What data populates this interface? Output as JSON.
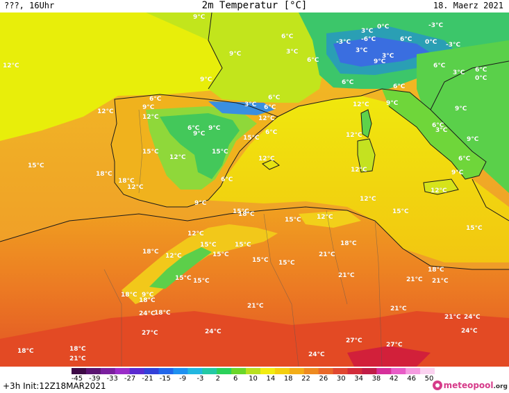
{
  "header": {
    "left": "???, 16Uhr",
    "title": "2m Temperatur [°C]",
    "date": "18. Maerz 2021"
  },
  "footer": {
    "init": "+3h Init:12Z18MAR2021",
    "logo": "meteopool",
    "logo_domain": ".org"
  },
  "colorbar": {
    "ticks": [
      "-45",
      "-39",
      "-33",
      "-27",
      "-21",
      "-15",
      "-9",
      "-3",
      "2",
      "6",
      "10",
      "14",
      "18",
      "22",
      "26",
      "30",
      "34",
      "38",
      "42",
      "46",
      "50"
    ],
    "colors": [
      "#3d0a45",
      "#5a1470",
      "#7a1f9e",
      "#9a2cc8",
      "#5a2bd0",
      "#3240d8",
      "#2266ea",
      "#1e90f0",
      "#22b7e0",
      "#23c9a4",
      "#2bd15a",
      "#6ad62a",
      "#b9e020",
      "#f2ec11",
      "#f4cf0e",
      "#f3ad17",
      "#ee8a20",
      "#e9682a",
      "#e04730",
      "#d22b3a",
      "#c01c46",
      "#d62f9a",
      "#e85cc6",
      "#f59be0",
      "#fbd2f0"
    ]
  },
  "map": {
    "colors": {
      "sea_west": "#f1a62f",
      "land_africa": "#ec7d22",
      "sahara_hot": "#e25a22",
      "mediterranean": "#f2d60c",
      "bay_biscay": "#e9ef0a",
      "iberia_warm": "#f1bf16",
      "mountains_green": "#4fd247",
      "alps_cold": "#2ba36c",
      "alps_blue": "#3a6fe0",
      "coast": "#1a1a1a"
    },
    "labels": [
      {
        "t": "9°C"
      },
      {
        "t": "6°C"
      },
      {
        "t": "9°C"
      },
      {
        "t": "9°C"
      },
      {
        "t": "12°C"
      },
      {
        "t": "3°C"
      },
      {
        "t": "6°C"
      },
      {
        "t": "-3°C"
      },
      {
        "t": "3°C"
      },
      {
        "t": "0°C"
      },
      {
        "t": "-3°C"
      },
      {
        "t": "-6°C"
      },
      {
        "t": "6°C"
      },
      {
        "t": "0°C"
      },
      {
        "t": "-3°C"
      },
      {
        "t": "6°C"
      },
      {
        "t": "3°C"
      },
      {
        "t": "3°C"
      },
      {
        "t": "9°C"
      },
      {
        "t": "6°C"
      },
      {
        "t": "6°C"
      },
      {
        "t": "3°C"
      },
      {
        "t": "6°C"
      },
      {
        "t": "0°C"
      },
      {
        "t": "6°C"
      },
      {
        "t": "6°C"
      },
      {
        "t": "12°C"
      },
      {
        "t": "9°C"
      },
      {
        "t": "3°C"
      },
      {
        "t": "6°C"
      },
      {
        "t": "6°C"
      },
      {
        "t": "9°C"
      },
      {
        "t": "12°C"
      },
      {
        "t": "9°C"
      },
      {
        "t": "12°C"
      },
      {
        "t": "12°C"
      },
      {
        "t": "6°C"
      },
      {
        "t": "9°C"
      },
      {
        "t": "15°C"
      },
      {
        "t": "9°C"
      },
      {
        "t": "6°C"
      },
      {
        "t": "12°C"
      },
      {
        "t": "3°C"
      },
      {
        "t": "9°C"
      },
      {
        "t": "12°C"
      },
      {
        "t": "15°C"
      },
      {
        "t": "6°C"
      },
      {
        "t": "12°C"
      },
      {
        "t": "15°C"
      },
      {
        "t": "12°C"
      },
      {
        "t": "9°C"
      },
      {
        "t": "12°C"
      },
      {
        "t": "15°C"
      },
      {
        "t": "6°C"
      },
      {
        "t": "15°C"
      },
      {
        "t": "18°C"
      },
      {
        "t": "18°C"
      },
      {
        "t": "12°C"
      },
      {
        "t": "9°C"
      },
      {
        "t": "12°C"
      },
      {
        "t": "12°C"
      },
      {
        "t": "15°C"
      },
      {
        "t": "15°C"
      },
      {
        "t": "12°C"
      },
      {
        "t": "15°C"
      },
      {
        "t": "18°C"
      },
      {
        "t": "15°C"
      },
      {
        "t": "15°C"
      },
      {
        "t": "15°C"
      },
      {
        "t": "15°C"
      },
      {
        "t": "18°C"
      },
      {
        "t": "18°C"
      },
      {
        "t": "12°C"
      },
      {
        "t": "15°C"
      },
      {
        "t": "15°C"
      },
      {
        "t": "18°C"
      },
      {
        "t": "21°C"
      },
      {
        "t": "21°C"
      },
      {
        "t": "15°C"
      },
      {
        "t": "21°C"
      },
      {
        "t": "18°C"
      },
      {
        "t": "21°C"
      },
      {
        "t": "21°C"
      },
      {
        "t": "18°C"
      },
      {
        "t": "9°C"
      },
      {
        "t": "18°C"
      },
      {
        "t": "24°C"
      },
      {
        "t": "21°C"
      },
      {
        "t": "24°C"
      },
      {
        "t": "21°C"
      },
      {
        "t": "27°C"
      },
      {
        "t": "24°C"
      },
      {
        "t": "27°C"
      },
      {
        "t": "27°C"
      },
      {
        "t": "24°C"
      },
      {
        "t": "24°C"
      },
      {
        "t": "18°C"
      },
      {
        "t": "18°C"
      },
      {
        "t": "21°C"
      }
    ]
  }
}
